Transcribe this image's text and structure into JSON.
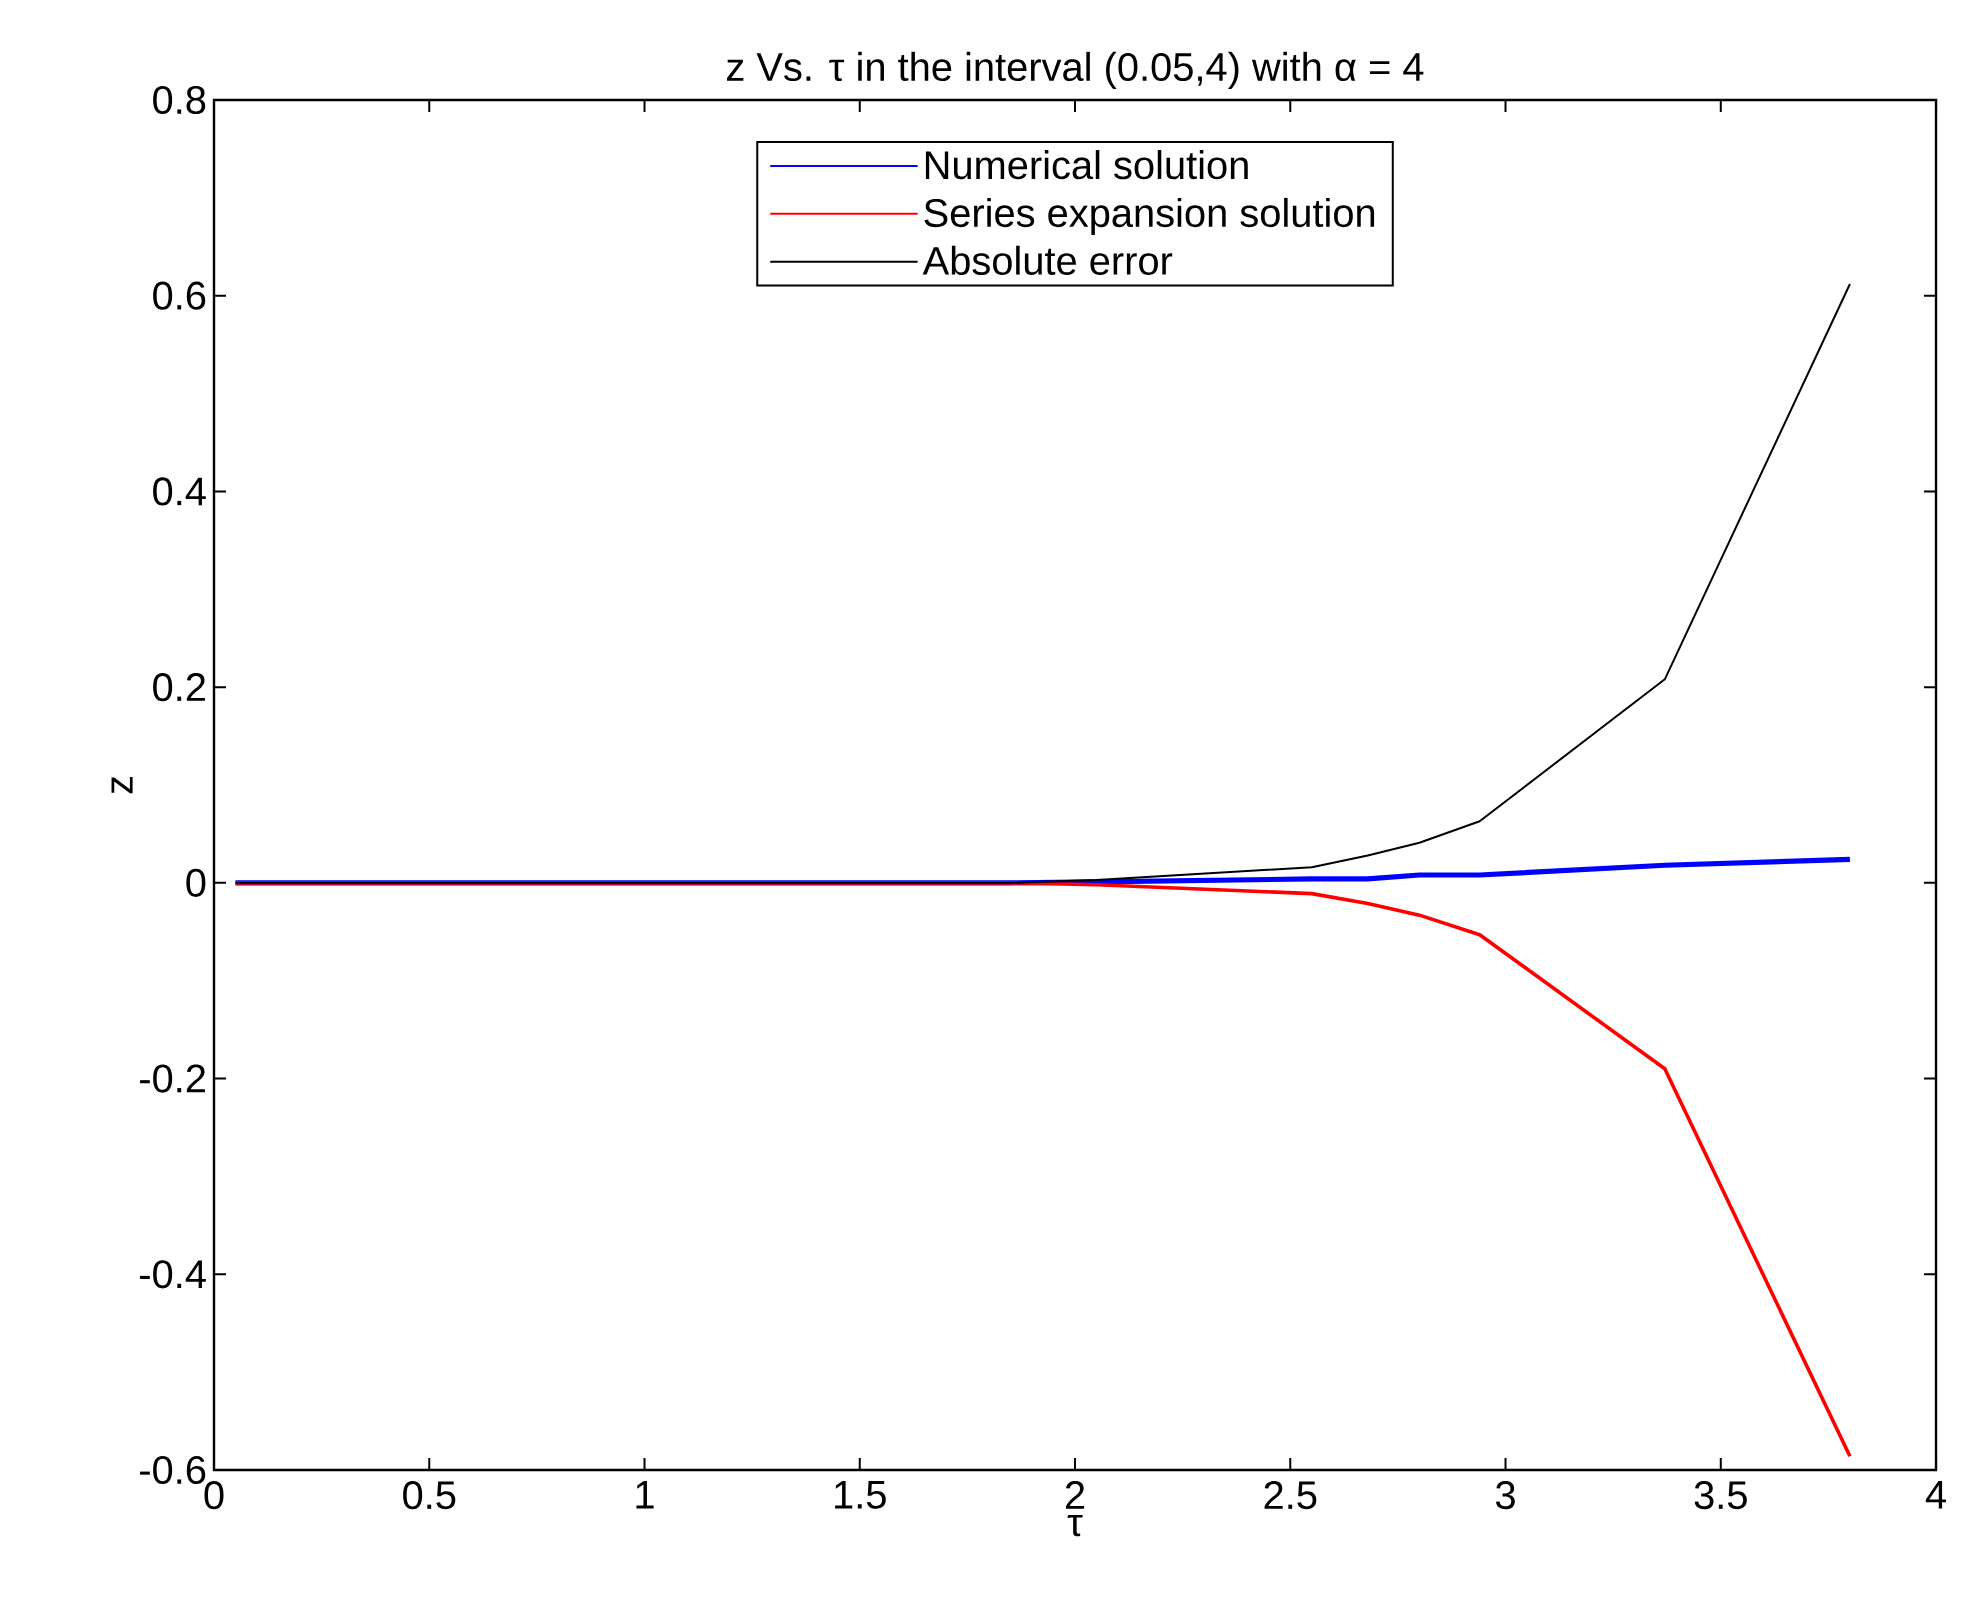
{
  "chart_data": {
    "type": "line",
    "title": "z Vs. τ in the interval (0.05,4) with α = 4",
    "xlabel": "τ",
    "ylabel": "z",
    "x": [
      0.05,
      1.85,
      2.05,
      2.55,
      2.68,
      2.8,
      2.94,
      3.37,
      3.8
    ],
    "series": [
      {
        "name": "Numerical solution",
        "color": "#0000ff",
        "values": [
          0,
          0,
          0.001,
          0.004,
          0.004,
          0.008,
          0.008,
          0.018,
          0.024
        ]
      },
      {
        "name": "Series expansion solution",
        "color": "#ff0000",
        "values": [
          0,
          0,
          -0.002,
          -0.011,
          -0.021,
          -0.033,
          -0.053,
          -0.19,
          -0.586
        ]
      },
      {
        "name": "Absolute error",
        "color": "#000000",
        "values": [
          0,
          0,
          0.003,
          0.016,
          0.028,
          0.041,
          0.063,
          0.208,
          0.612
        ]
      }
    ],
    "xlim": [
      0,
      4
    ],
    "ylim": [
      -0.6,
      0.8
    ],
    "xticks": [
      0,
      0.5,
      1,
      1.5,
      2,
      2.5,
      3,
      3.5,
      4
    ],
    "yticks": [
      -0.6,
      -0.4,
      -0.2,
      0,
      0.2,
      0.4,
      0.6,
      0.8
    ],
    "grid": false,
    "legend": "top",
    "marker": "none",
    "line_style": "solid"
  }
}
